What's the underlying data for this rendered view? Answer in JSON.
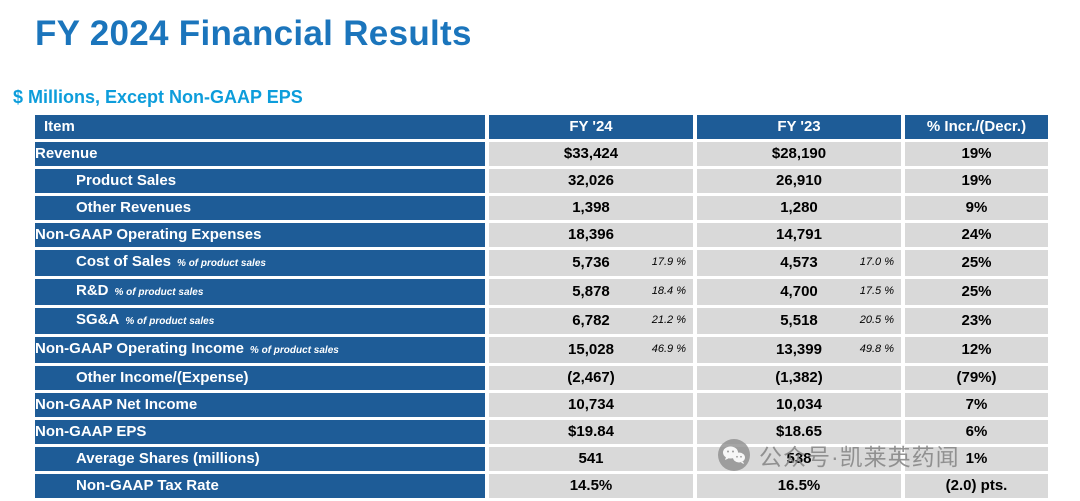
{
  "title": "FY 2024 Financial Results",
  "subtitle": "$ Millions, Except Non-GAAP EPS",
  "colors": {
    "title": "#1B75BC",
    "subtitle": "#0D9DDB",
    "header_bg": "#1E5C97",
    "cell_bg": "#D9D9D9",
    "header_text": "#FFFFFF",
    "cell_text": "#000000"
  },
  "table": {
    "columns": [
      "Item",
      "FY '24",
      "FY '23",
      "% Incr./(Decr.)"
    ],
    "rows": [
      {
        "label": "Revenue",
        "sub": "",
        "indent": false,
        "fy24": "$33,424",
        "fy24_pct": "",
        "fy23": "$28,190",
        "fy23_pct": "",
        "change": "19%"
      },
      {
        "label": "Product Sales",
        "sub": "",
        "indent": true,
        "fy24": "32,026",
        "fy24_pct": "",
        "fy23": "26,910",
        "fy23_pct": "",
        "change": "19%"
      },
      {
        "label": "Other Revenues",
        "sub": "",
        "indent": true,
        "fy24": "1,398",
        "fy24_pct": "",
        "fy23": "1,280",
        "fy23_pct": "",
        "change": "9%"
      },
      {
        "label": "Non-GAAP Operating Expenses",
        "sub": "",
        "indent": false,
        "fy24": "18,396",
        "fy24_pct": "",
        "fy23": "14,791",
        "fy23_pct": "",
        "change": "24%"
      },
      {
        "label": "Cost of Sales",
        "sub": "% of product sales",
        "indent": true,
        "fy24": "5,736",
        "fy24_pct": "17.9 %",
        "fy23": "4,573",
        "fy23_pct": "17.0 %",
        "change": "25%"
      },
      {
        "label": "R&D",
        "sub": "% of product sales",
        "indent": true,
        "fy24": "5,878",
        "fy24_pct": "18.4 %",
        "fy23": "4,700",
        "fy23_pct": "17.5 %",
        "change": "25%"
      },
      {
        "label": "SG&A",
        "sub": "% of product sales",
        "indent": true,
        "fy24": "6,782",
        "fy24_pct": "21.2 %",
        "fy23": "5,518",
        "fy23_pct": "20.5 %",
        "change": "23%"
      },
      {
        "label": "Non-GAAP Operating Income",
        "sub": "% of product sales",
        "indent": false,
        "fy24": "15,028",
        "fy24_pct": "46.9 %",
        "fy23": "13,399",
        "fy23_pct": "49.8 %",
        "change": "12%"
      },
      {
        "label": "Other Income/(Expense)",
        "sub": "",
        "indent": true,
        "fy24": "(2,467)",
        "fy24_pct": "",
        "fy23": "(1,382)",
        "fy23_pct": "",
        "change": "(79%)"
      },
      {
        "label": "Non-GAAP Net Income",
        "sub": "",
        "indent": false,
        "fy24": "10,734",
        "fy24_pct": "",
        "fy23": "10,034",
        "fy23_pct": "",
        "change": "7%"
      },
      {
        "label": "Non-GAAP EPS",
        "sub": "",
        "indent": false,
        "fy24": "$19.84",
        "fy24_pct": "",
        "fy23": "$18.65",
        "fy23_pct": "",
        "change": "6%"
      },
      {
        "label": "Average Shares (millions)",
        "sub": "",
        "indent": true,
        "fy24": "541",
        "fy24_pct": "",
        "fy23": "538",
        "fy23_pct": "",
        "change": "1%"
      },
      {
        "label": "Non-GAAP Tax Rate",
        "sub": "",
        "indent": true,
        "fy24": "14.5%",
        "fy24_pct": "",
        "fy23": "16.5%",
        "fy23_pct": "",
        "change": "(2.0) pts."
      }
    ]
  },
  "watermark": {
    "text": "公众号·凯莱英药闻",
    "icon": "wechat-icon"
  }
}
